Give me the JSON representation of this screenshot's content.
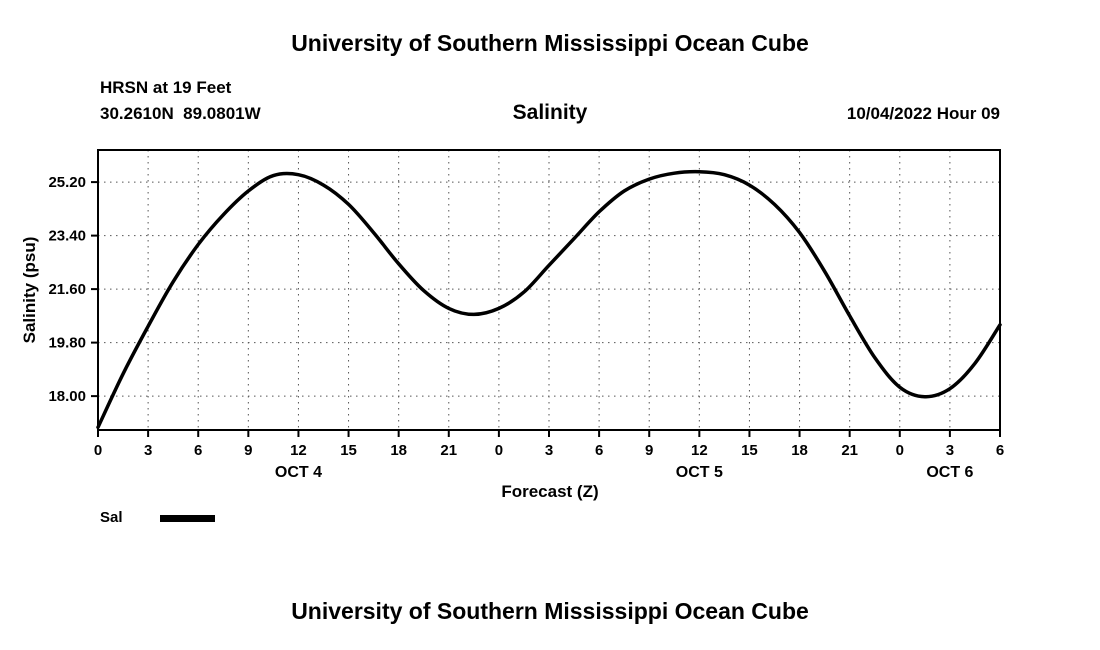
{
  "titles": {
    "top": "University of Southern Mississippi Ocean Cube",
    "bottom": "University of Southern Mississippi Ocean Cube"
  },
  "header": {
    "station": "HRSN at 19 Feet",
    "coords": "30.2610N  89.0801W",
    "run": "10/04/2022 Hour 09"
  },
  "chart_data": {
    "type": "line",
    "title": "Salinity",
    "xlabel": "Forecast (Z)",
    "ylabel": "Salinity (psu)",
    "grid": true,
    "grid_style": "dotted",
    "xlim": [
      0,
      54
    ],
    "ylim": [
      16.86,
      26.28
    ],
    "yticks": [
      18.0,
      19.8,
      21.6,
      23.4,
      25.2
    ],
    "ytick_labels": [
      "18.00",
      "19.80",
      "21.60",
      "23.40",
      "25.20"
    ],
    "xtick_hours": [
      0,
      3,
      6,
      9,
      12,
      15,
      18,
      21,
      24,
      27,
      30,
      33,
      36,
      39,
      42,
      45,
      48,
      51,
      54
    ],
    "xtick_labels": [
      "0",
      "3",
      "6",
      "9",
      "12",
      "15",
      "18",
      "21",
      "0",
      "3",
      "6",
      "9",
      "12",
      "15",
      "18",
      "21",
      "0",
      "3",
      "6"
    ],
    "day_labels": [
      {
        "label": "OCT 4",
        "hour": 12
      },
      {
        "label": "OCT 5",
        "hour": 36
      },
      {
        "label": "OCT 6",
        "hour": 51
      }
    ],
    "series": [
      {
        "name": "Sal",
        "color": "#000000",
        "x": [
          0,
          1.5,
          3,
          4.5,
          6,
          7.5,
          9,
          10.5,
          12,
          13.5,
          15,
          16.5,
          18,
          19.5,
          21,
          22.5,
          24,
          25.5,
          27,
          28.5,
          30,
          31.5,
          33,
          34.5,
          36,
          37.5,
          39,
          40.5,
          42,
          43.5,
          45,
          46.5,
          48,
          49.5,
          51,
          52.5,
          54
        ],
        "values": [
          16.95,
          18.75,
          20.35,
          21.85,
          23.1,
          24.1,
          24.9,
          25.42,
          25.45,
          25.1,
          24.45,
          23.5,
          22.45,
          21.55,
          20.95,
          20.75,
          20.95,
          21.5,
          22.4,
          23.3,
          24.2,
          24.9,
          25.3,
          25.5,
          25.55,
          25.45,
          25.1,
          24.45,
          23.5,
          22.2,
          20.7,
          19.3,
          18.3,
          17.98,
          18.25,
          19.1,
          20.4
        ]
      }
    ],
    "legend": [
      {
        "label": "Sal",
        "color": "#000000"
      }
    ],
    "legend_position": "bottom-left"
  }
}
